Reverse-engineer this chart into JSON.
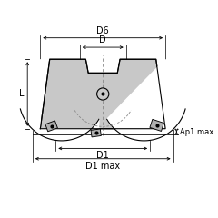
{
  "bg_color": "#ffffff",
  "line_color": "#000000",
  "body_color": "#c8c8c8",
  "insert_color": "#b0b0b0",
  "dashed_color": "#888888",
  "labels": {
    "D6": "D6",
    "D": "D",
    "D1": "D1",
    "D1max": "D1 max",
    "L": "L",
    "Ap1max": "Ap1 max"
  },
  "font_size": 7,
  "small_font": 6
}
